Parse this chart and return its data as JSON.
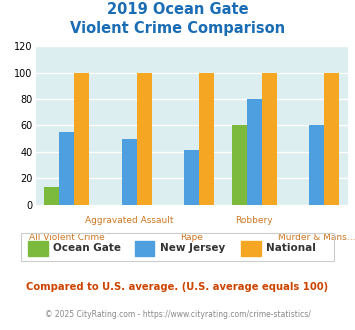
{
  "title_line1": "2019 Ocean Gate",
  "title_line2": "Violent Crime Comparison",
  "x_labels_top": {
    "1": "Aggravated Assault",
    "3": "Robbery"
  },
  "x_labels_bottom": {
    "0": "All Violent Crime",
    "2": "Rape",
    "4": "Murder & Mans..."
  },
  "series": {
    "Ocean Gate": [
      13,
      0,
      0,
      60,
      0
    ],
    "New Jersey": [
      55,
      50,
      41,
      80,
      60
    ],
    "National": [
      100,
      100,
      100,
      100,
      100
    ]
  },
  "colors": {
    "Ocean Gate": "#7cba3d",
    "New Jersey": "#4d9fe0",
    "National": "#f5a623"
  },
  "ylim": [
    0,
    120
  ],
  "yticks": [
    0,
    20,
    40,
    60,
    80,
    100,
    120
  ],
  "background_color": "#ddeef0",
  "title_color": "#1a6db5",
  "xlabel_top_color": "#cc7722",
  "xlabel_bottom_color": "#cc7722",
  "footer_text": "Compared to U.S. average. (U.S. average equals 100)",
  "copyright_text": "© 2025 CityRating.com - https://www.cityrating.com/crime-statistics/",
  "footer_color": "#cc4400",
  "copyright_color": "#888888",
  "n_groups": 5
}
